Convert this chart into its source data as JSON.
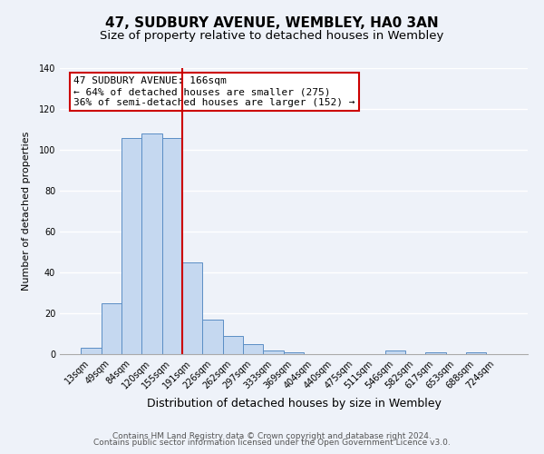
{
  "title": "47, SUDBURY AVENUE, WEMBLEY, HA0 3AN",
  "subtitle": "Size of property relative to detached houses in Wembley",
  "xlabel": "Distribution of detached houses by size in Wembley",
  "ylabel": "Number of detached properties",
  "bin_labels": [
    "13sqm",
    "49sqm",
    "84sqm",
    "120sqm",
    "155sqm",
    "191sqm",
    "226sqm",
    "262sqm",
    "297sqm",
    "333sqm",
    "369sqm",
    "404sqm",
    "440sqm",
    "475sqm",
    "511sqm",
    "546sqm",
    "582sqm",
    "617sqm",
    "653sqm",
    "688sqm",
    "724sqm"
  ],
  "bar_heights": [
    3,
    25,
    106,
    108,
    106,
    45,
    17,
    9,
    5,
    2,
    1,
    0,
    0,
    0,
    0,
    2,
    0,
    1,
    0,
    1,
    0
  ],
  "bar_color": "#c5d8f0",
  "bar_edge_color": "#5b8ec5",
  "vline_color": "#cc0000",
  "annotation_title": "47 SUDBURY AVENUE: 166sqm",
  "annotation_line1": "← 64% of detached houses are smaller (275)",
  "annotation_line2": "36% of semi-detached houses are larger (152) →",
  "annotation_box_color": "#ffffff",
  "annotation_box_edge": "#cc0000",
  "ylim": [
    0,
    140
  ],
  "yticks": [
    0,
    20,
    40,
    60,
    80,
    100,
    120,
    140
  ],
  "footer1": "Contains HM Land Registry data © Crown copyright and database right 2024.",
  "footer2": "Contains public sector information licensed under the Open Government Licence v3.0.",
  "background_color": "#eef2f9",
  "grid_color": "#ffffff",
  "title_fontsize": 11,
  "subtitle_fontsize": 9.5,
  "xlabel_fontsize": 9,
  "ylabel_fontsize": 8,
  "tick_fontsize": 7,
  "footer_fontsize": 6.5,
  "annotation_fontsize": 8
}
